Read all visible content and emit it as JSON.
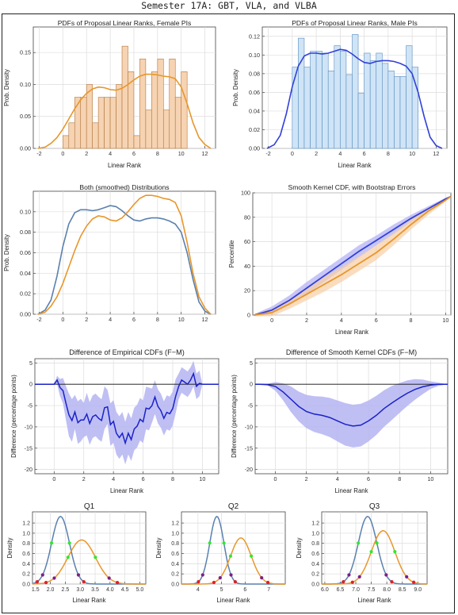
{
  "page_title": "Semester 17A: GBT, VLA, and VLBA",
  "colors": {
    "female": "#E8962A",
    "female_fill": "#F6D3B2",
    "male": "#3240D8",
    "male_fill": "#CFE4F6",
    "both_male": "#5A80AE",
    "band_male": "#AFAEF2",
    "band_female": "#F8CFA4",
    "band_diff": "#B4B4F2",
    "dot_green": "#2EE82E",
    "dot_purple": "#7A1F88",
    "dot_red": "#E02020"
  },
  "chart_data": [
    {
      "id": "p1",
      "type": "bar",
      "title": "PDFs of Proposal Linear Ranks, Female PIs",
      "xlabel": "Linear Rank",
      "ylabel": "Prob. Density",
      "xlim": [
        -2.5,
        12.9
      ],
      "ylim": [
        0,
        0.19
      ],
      "xticks": [
        -2,
        0,
        2,
        4,
        6,
        8,
        10,
        12
      ],
      "yticks": [
        0,
        0.05,
        0.1,
        0.15
      ],
      "bin_width": 0.5,
      "bin_start": 0,
      "values": [
        0.02,
        0.04,
        0.08,
        0.08,
        0.1,
        0.04,
        0.08,
        0.08,
        0.08,
        0.1,
        0.16,
        0.12,
        0.02,
        0.14,
        0.06,
        0.12,
        0.14,
        0.06,
        0.14,
        0.08,
        0.12
      ],
      "line_x": [
        -2.1,
        -1.5,
        -1,
        -0.5,
        0,
        0.5,
        1,
        1.5,
        2,
        2.5,
        3,
        3.5,
        4,
        4.5,
        5,
        5.5,
        6,
        6.5,
        7,
        7.5,
        8,
        8.5,
        9,
        9.5,
        10,
        10.5,
        11,
        11.5,
        12,
        12.5
      ],
      "line_y": [
        0,
        0.002,
        0.008,
        0.017,
        0.03,
        0.046,
        0.062,
        0.076,
        0.086,
        0.093,
        0.096,
        0.095,
        0.092,
        0.091,
        0.094,
        0.1,
        0.107,
        0.113,
        0.116,
        0.116,
        0.115,
        0.113,
        0.112,
        0.109,
        0.096,
        0.07,
        0.04,
        0.017,
        0.006,
        0
      ]
    },
    {
      "id": "p2",
      "type": "bar",
      "title": "PDFs of Proposal Linear Ranks, Male PIs",
      "xlabel": "Linear Rank",
      "ylabel": "Prob. Density",
      "xlim": [
        -2.5,
        12.9
      ],
      "ylim": [
        0,
        0.13
      ],
      "xticks": [
        -2,
        0,
        2,
        4,
        6,
        8,
        10,
        12
      ],
      "yticks": [
        0,
        0.02,
        0.04,
        0.06,
        0.08,
        0.1,
        0.12
      ],
      "bin_width": 0.5,
      "bin_start": 0,
      "values": [
        0.087,
        0.118,
        0.087,
        0.104,
        0.104,
        0.102,
        0.083,
        0.11,
        0.104,
        0.079,
        0.122,
        0.059,
        0.102,
        0.094,
        0.102,
        0.091,
        0.083,
        0.077,
        0.077,
        0.11,
        0.087
      ],
      "line_x": [
        -2.1,
        -1.5,
        -1,
        -0.5,
        0,
        0.5,
        1,
        1.5,
        2,
        2.5,
        3,
        3.5,
        4,
        4.5,
        5,
        5.5,
        6,
        6.5,
        7,
        7.5,
        8,
        8.5,
        9,
        9.5,
        10,
        10.5,
        11,
        11.5,
        12,
        12.5
      ],
      "line_y": [
        0,
        0.004,
        0.014,
        0.037,
        0.066,
        0.088,
        0.099,
        0.102,
        0.102,
        0.101,
        0.102,
        0.104,
        0.106,
        0.105,
        0.101,
        0.096,
        0.092,
        0.091,
        0.093,
        0.094,
        0.094,
        0.093,
        0.091,
        0.088,
        0.08,
        0.06,
        0.034,
        0.012,
        0.003,
        0
      ]
    },
    {
      "id": "p3",
      "type": "line",
      "title": "Both (smoothed) Distributions",
      "xlabel": "",
      "ylabel": "Prob. Density",
      "xlim": [
        -2.5,
        12.9
      ],
      "ylim": [
        0,
        0.12
      ],
      "xticks": [
        -2,
        0,
        2,
        4,
        6,
        8,
        10,
        12
      ],
      "yticks": [
        0,
        0.02,
        0.04,
        0.06,
        0.08,
        0.1
      ],
      "series": [
        {
          "x": [
            -2.1,
            -1.5,
            -1,
            -0.5,
            0,
            0.5,
            1,
            1.5,
            2,
            2.5,
            3,
            3.5,
            4,
            4.5,
            5,
            5.5,
            6,
            6.5,
            7,
            7.5,
            8,
            8.5,
            9,
            9.5,
            10,
            10.5,
            11,
            11.5,
            12,
            12.5
          ],
          "y": [
            0,
            0.004,
            0.014,
            0.037,
            0.066,
            0.088,
            0.099,
            0.102,
            0.102,
            0.101,
            0.102,
            0.104,
            0.106,
            0.105,
            0.101,
            0.096,
            0.092,
            0.091,
            0.093,
            0.094,
            0.094,
            0.093,
            0.091,
            0.088,
            0.08,
            0.06,
            0.034,
            0.012,
            0.003,
            0
          ]
        },
        {
          "x": [
            -2.1,
            -1.5,
            -1,
            -0.5,
            0,
            0.5,
            1,
            1.5,
            2,
            2.5,
            3,
            3.5,
            4,
            4.5,
            5,
            5.5,
            6,
            6.5,
            7,
            7.5,
            8,
            8.5,
            9,
            9.5,
            10,
            10.5,
            11,
            11.5,
            12,
            12.5
          ],
          "y": [
            0,
            0.002,
            0.008,
            0.017,
            0.03,
            0.046,
            0.062,
            0.076,
            0.086,
            0.093,
            0.096,
            0.095,
            0.092,
            0.091,
            0.094,
            0.1,
            0.107,
            0.113,
            0.116,
            0.116,
            0.115,
            0.113,
            0.112,
            0.109,
            0.096,
            0.07,
            0.04,
            0.017,
            0.006,
            0
          ]
        }
      ]
    },
    {
      "id": "p4",
      "type": "area",
      "title": "Smooth Kernel CDF, with Bootstrap Errors",
      "xlabel": "Linear Rank",
      "ylabel": "Percentile",
      "xlim": [
        -1.1,
        10.3
      ],
      "ylim": [
        0,
        100
      ],
      "xticks": [
        0,
        2,
        4,
        6,
        8,
        10
      ],
      "yticks": [
        0,
        20,
        40,
        60,
        80,
        100
      ],
      "series": [
        {
          "x": [
            -1,
            0,
            1,
            2,
            3,
            4,
            5,
            6,
            7,
            8,
            9,
            10,
            10.3
          ],
          "y": [
            0,
            4,
            12,
            22,
            32,
            42,
            52,
            61,
            70,
            79,
            87,
            95,
            97
          ],
          "band_halfwidth": [
            1,
            3,
            4,
            5,
            5,
            5,
            5,
            4,
            4,
            3,
            2,
            1,
            0
          ]
        },
        {
          "x": [
            -1,
            0,
            1,
            2,
            3,
            4,
            5,
            6,
            7,
            8,
            9,
            10,
            10.3
          ],
          "y": [
            0,
            2,
            9,
            17,
            25,
            33,
            42,
            51,
            62,
            74,
            85,
            94,
            97
          ],
          "band_halfwidth": [
            1,
            3,
            4,
            5,
            6,
            6,
            6,
            6,
            5,
            4,
            3,
            1,
            0
          ]
        }
      ]
    },
    {
      "id": "p5",
      "type": "line",
      "title": "Difference of Empirical CDFs (F−M)",
      "xlabel": "Linear Rank",
      "ylabel": "Difference (percentage points)",
      "xlim": [
        -1.3,
        11.1
      ],
      "ylim": [
        -21,
        6
      ],
      "xticks": [
        0,
        2,
        4,
        6,
        8,
        10
      ],
      "yticks": [
        -20,
        -15,
        -10,
        -5,
        0,
        5
      ],
      "series": [
        {
          "x": [
            -1.3,
            0,
            0.2,
            0.4,
            0.6,
            0.8,
            1.0,
            1.2,
            1.4,
            1.6,
            1.8,
            2.0,
            2.2,
            2.4,
            2.6,
            2.8,
            3.0,
            3.2,
            3.4,
            3.6,
            3.8,
            4.0,
            4.2,
            4.4,
            4.6,
            4.8,
            5.0,
            5.2,
            5.4,
            5.6,
            5.8,
            6.0,
            6.2,
            6.4,
            6.6,
            6.8,
            7.0,
            7.2,
            7.4,
            7.6,
            7.8,
            8.0,
            8.2,
            8.4,
            8.6,
            8.8,
            9.0,
            9.2,
            9.4,
            9.6,
            9.8,
            10.0,
            11.1
          ],
          "y": [
            0,
            0,
            1,
            -0.8,
            -1.5,
            -4.5,
            -7.2,
            -8.5,
            -6.5,
            -9,
            -8.4,
            -8.4,
            -7,
            -9.2,
            -7.6,
            -7.2,
            -8,
            -8.5,
            -5.5,
            -5.3,
            -9.5,
            -8.7,
            -11.5,
            -12.5,
            -11.5,
            -13.8,
            -11.5,
            -13,
            -10.5,
            -9.8,
            -8.2,
            -8.8,
            -5.6,
            -5.8,
            -5,
            -3,
            -5.2,
            -6.2,
            -8,
            -6.6,
            -6.9,
            -5.7,
            -2.8,
            -0.5,
            1,
            0.5,
            0,
            1,
            2.5,
            -0.5,
            0.2,
            0,
            0
          ],
          "band_halfwidth": [
            0,
            0,
            1,
            2,
            3,
            4,
            5,
            5,
            4,
            5,
            5,
            4,
            5,
            5,
            5,
            5,
            5,
            5,
            5,
            4,
            5,
            5,
            5,
            5,
            5,
            5,
            5,
            5,
            5,
            5,
            5,
            5,
            5,
            5,
            4,
            4,
            4,
            4,
            4,
            4,
            4,
            4,
            4,
            3,
            3,
            3,
            3,
            3,
            3,
            3,
            3,
            0,
            0
          ]
        }
      ]
    },
    {
      "id": "p6",
      "type": "line",
      "title": "Difference of Smooth Kernel CDFs (F−M)",
      "xlabel": "Linear Rank",
      "ylabel": "Difference (percentage points)",
      "xlim": [
        -1.3,
        11.1
      ],
      "ylim": [
        -21,
        6
      ],
      "xticks": [
        0,
        2,
        4,
        6,
        8,
        10
      ],
      "yticks": [
        -20,
        -15,
        -10,
        -5,
        0,
        5
      ],
      "series": [
        {
          "x": [
            -1.3,
            -1,
            -0.5,
            0,
            0.5,
            1,
            1.5,
            2,
            2.5,
            3,
            3.5,
            4,
            4.5,
            5,
            5.5,
            6,
            6.5,
            7,
            7.5,
            8,
            8.5,
            9,
            9.5,
            10,
            10.5,
            11.1
          ],
          "y": [
            0,
            0,
            -0.1,
            -0.5,
            -1.8,
            -3.5,
            -5.2,
            -6.4,
            -7,
            -7.3,
            -7.8,
            -8.6,
            -9.4,
            -9.8,
            -9.6,
            -8.6,
            -7.3,
            -5.7,
            -4.4,
            -3.2,
            -2.1,
            -1.2,
            -0.6,
            -0.2,
            0,
            0
          ],
          "band_halfwidth": [
            0,
            0,
            0.2,
            1,
            2,
            3,
            3.5,
            3.9,
            4.2,
            4.4,
            4.6,
            4.8,
            5,
            5,
            5,
            4.8,
            4.6,
            4.3,
            4,
            3.5,
            3,
            2.4,
            1.7,
            0.9,
            0.4,
            0
          ]
        }
      ]
    },
    {
      "id": "q1",
      "type": "line",
      "title": "Q1",
      "xlabel": "Linear Rank",
      "ylabel": "Density",
      "xlim": [
        1.4,
        5.2
      ],
      "ylim": [
        0,
        1.42
      ],
      "xticks": [
        1.5,
        2.0,
        2.5,
        3.0,
        3.5,
        4.0,
        4.5,
        5.0
      ],
      "xtick_labels": [
        "1.5",
        "2.0",
        "2.5",
        "3.0",
        "3.5",
        "4.0",
        "4.5",
        "5.0"
      ],
      "yticks": [
        0,
        0.2,
        0.4,
        0.6,
        0.8,
        1.0,
        1.2
      ],
      "series": [
        {
          "mu": 2.34,
          "sigma": 0.3
        },
        {
          "mu": 3.05,
          "sigma": 0.46
        }
      ]
    },
    {
      "id": "q2",
      "type": "line",
      "title": "Q2",
      "xlabel": "Linear Rank",
      "ylabel": "Density",
      "xlim": [
        3.3,
        7.7
      ],
      "ylim": [
        0,
        1.42
      ],
      "xticks": [
        4,
        5,
        6,
        7
      ],
      "xtick_labels": [
        "4",
        "5",
        "6",
        "7"
      ],
      "yticks": [
        0,
        0.2,
        0.4,
        0.6,
        0.8,
        1.0,
        1.2
      ],
      "series": [
        {
          "mu": 4.8,
          "sigma": 0.3
        },
        {
          "mu": 5.82,
          "sigma": 0.44
        }
      ]
    },
    {
      "id": "q3",
      "type": "line",
      "title": "Q3",
      "xlabel": "Linear Rank",
      "ylabel": "Density",
      "xlim": [
        5.9,
        9.3
      ],
      "ylim": [
        0,
        1.42
      ],
      "xticks": [
        6.0,
        6.5,
        7.0,
        7.5,
        8.0,
        8.5,
        9.0
      ],
      "xtick_labels": [
        "6.0",
        "6.5",
        "7.0",
        "7.5",
        "8.0",
        "8.5",
        "9.0"
      ],
      "yticks": [
        0,
        0.2,
        0.4,
        0.6,
        0.8,
        1.0,
        1.2
      ],
      "series": [
        {
          "mu": 7.38,
          "sigma": 0.3
        },
        {
          "mu": 7.88,
          "sigma": 0.38
        }
      ]
    }
  ]
}
